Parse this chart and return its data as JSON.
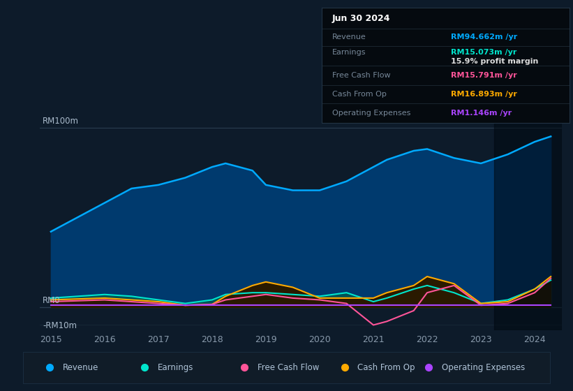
{
  "bg_color": "#0d1b2a",
  "chart_bg": "#0d1b2a",
  "title": "Jun 30 2024",
  "years": [
    2015,
    2015.5,
    2016,
    2016.5,
    2017,
    2017.5,
    2018,
    2018.25,
    2018.75,
    2019,
    2019.5,
    2020,
    2020.5,
    2021,
    2021.25,
    2021.75,
    2022,
    2022.5,
    2023,
    2023.5,
    2024,
    2024.3
  ],
  "revenue": [
    42,
    50,
    58,
    66,
    68,
    72,
    78,
    80,
    76,
    68,
    65,
    65,
    70,
    78,
    82,
    87,
    88,
    83,
    80,
    85,
    92,
    95
  ],
  "earnings": [
    5,
    6,
    7,
    6,
    4,
    2,
    4,
    7,
    8,
    8,
    7,
    6,
    8,
    3,
    5,
    10,
    12,
    8,
    2,
    4,
    10,
    15
  ],
  "free_cash_flow": [
    3,
    3.5,
    4,
    3,
    2,
    1,
    1.5,
    4,
    6,
    7,
    5,
    4,
    2,
    -10,
    -8,
    -2,
    8,
    12,
    1,
    2,
    8,
    16
  ],
  "cash_from_op": [
    4,
    4.5,
    5,
    4,
    3,
    1,
    1.5,
    6,
    12,
    14,
    11,
    5,
    5,
    5,
    8,
    12,
    17,
    13,
    2,
    3,
    10,
    17
  ],
  "op_expenses": [
    1,
    1,
    1,
    1,
    1,
    1,
    1,
    1,
    1,
    1,
    1,
    1,
    1,
    1,
    1,
    1,
    1,
    1,
    1,
    1,
    1,
    1
  ],
  "revenue_color": "#00aaff",
  "revenue_fill": "#003a6e",
  "earnings_color": "#00e5cc",
  "earnings_fill": "#005555",
  "fcf_color": "#ff5599",
  "cfo_color": "#ffaa00",
  "cfo_fill": "#2a1a00",
  "opex_color": "#aa44ff",
  "ylim": [
    -13,
    110
  ],
  "xticks": [
    2015,
    2016,
    2017,
    2018,
    2019,
    2020,
    2021,
    2022,
    2023,
    2024
  ],
  "info_rows": [
    {
      "label": "Revenue",
      "value": "RM94.662m /yr",
      "label_color": "#778899",
      "value_color": "#00aaff"
    },
    {
      "label": "Earnings",
      "value": "RM15.073m /yr",
      "label_color": "#778899",
      "value_color": "#00e5cc"
    },
    {
      "label": "",
      "value": "15.9% profit margin",
      "label_color": "#778899",
      "value_color": "#dddddd"
    },
    {
      "label": "Free Cash Flow",
      "value": "RM15.791m /yr",
      "label_color": "#778899",
      "value_color": "#ff5599"
    },
    {
      "label": "Cash From Op",
      "value": "RM16.893m /yr",
      "label_color": "#778899",
      "value_color": "#ffaa00"
    },
    {
      "label": "Operating Expenses",
      "value": "RM1.146m /yr",
      "label_color": "#778899",
      "value_color": "#aa44ff"
    }
  ],
  "legend_items": [
    {
      "label": "Revenue",
      "color": "#00aaff"
    },
    {
      "label": "Earnings",
      "color": "#00e5cc"
    },
    {
      "label": "Free Cash Flow",
      "color": "#ff5599"
    },
    {
      "label": "Cash From Op",
      "color": "#ffaa00"
    },
    {
      "label": "Operating Expenses",
      "color": "#aa44ff"
    }
  ]
}
